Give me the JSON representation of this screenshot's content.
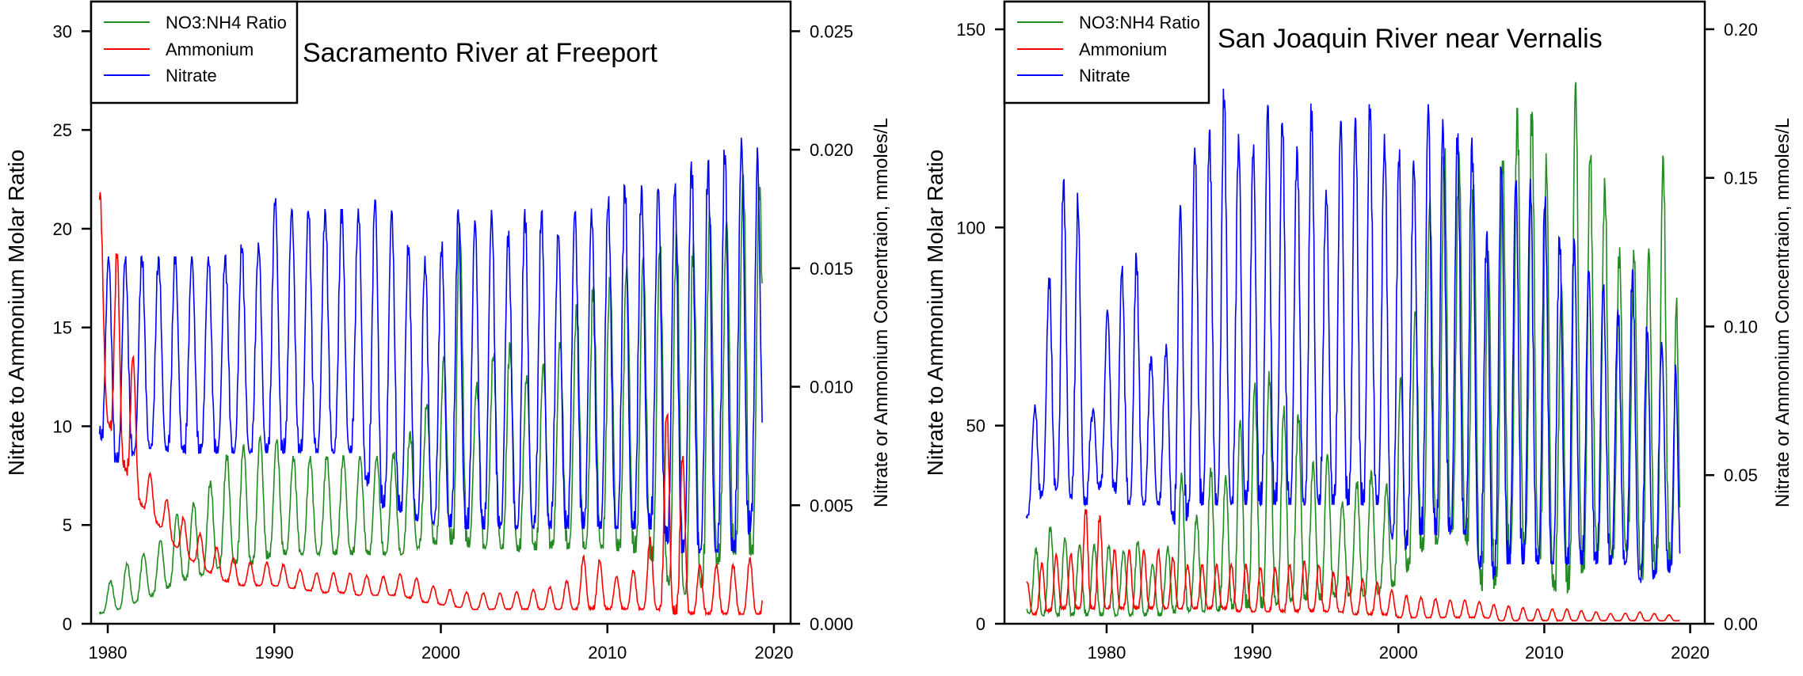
{
  "chart_data": [
    {
      "type": "line",
      "title": "Sacramento River at Freeport",
      "ylabel": "Nitrate to Ammonium Molar Ratio",
      "y2label": "Nitrate or Ammonium Concentraion, mmoles/L",
      "xlim": [
        1979,
        2021
      ],
      "ylim": [
        0,
        31.5
      ],
      "y2lim": [
        0,
        0.02625
      ],
      "xticks": [
        "1980",
        "1990",
        "2000",
        "2010",
        "2020"
      ],
      "yticks": [
        "0",
        "5",
        "10",
        "15",
        "20",
        "25",
        "30"
      ],
      "y2ticks": [
        "0.000",
        "0.005",
        "0.010",
        "0.015",
        "0.020",
        "0.025"
      ],
      "legend": [
        "NO3:NH4 Ratio",
        "Ammonium",
        "Nitrate"
      ],
      "legend_position": "top-left",
      "series": [
        {
          "name": "NO3:NH4 Ratio",
          "axis": "left",
          "color": "#228B22",
          "x": [
            1979.5,
            1980,
            1981,
            1982,
            1983,
            1984,
            1985,
            1986,
            1987,
            1988,
            1989,
            1990,
            1991,
            1992,
            1993,
            1994,
            1995,
            1996,
            1997,
            1998,
            1999,
            2000,
            2001,
            2002,
            2003,
            2004,
            2005,
            2006,
            2007,
            2008,
            2009,
            2010,
            2011,
            2012,
            2013,
            2014,
            2015,
            2016,
            2017,
            2018,
            2019,
            2019.3
          ],
          "low": [
            0.5,
            0.6,
            0.8,
            1.2,
            1.5,
            2,
            2.3,
            2.5,
            3,
            3,
            3,
            3.5,
            3.5,
            3.5,
            3.5,
            3.5,
            3.5,
            3.5,
            3.5,
            3.5,
            4,
            4,
            4,
            3.8,
            3.8,
            3.8,
            3.6,
            3.8,
            3.8,
            3.8,
            3.8,
            3.8,
            3.6,
            3.6,
            3,
            1.5,
            1.5,
            2,
            3.5,
            3.5,
            3.5,
            3.8
          ],
          "high": [
            1.5,
            2,
            3,
            3.5,
            4,
            5.5,
            6,
            7,
            8.5,
            9,
            9.5,
            9.5,
            8.5,
            8.5,
            8.5,
            8.5,
            8.5,
            8.5,
            8.5,
            9.5,
            11,
            12,
            21.5,
            12,
            13.5,
            14.5,
            12.5,
            13,
            14,
            16,
            17,
            17.5,
            18,
            18.5,
            19,
            20,
            19,
            21,
            20,
            22.5,
            23.5,
            21
          ]
        },
        {
          "name": "Ammonium",
          "axis": "right",
          "color": "#FF0000",
          "x": [
            1979.5,
            1980,
            1981,
            1982,
            1983,
            1984,
            1985,
            1986,
            1987,
            1988,
            1989,
            1990,
            1991,
            1992,
            1993,
            1994,
            1995,
            1996,
            1997,
            1998,
            1999,
            2000,
            2001,
            2002,
            2003,
            2004,
            2005,
            2006,
            2007,
            2008,
            2009,
            2010,
            2011,
            2012,
            2013,
            2014,
            2015,
            2016,
            2017,
            2018,
            2019,
            2019.3
          ],
          "low": [
            0.0125,
            0.0085,
            0.0065,
            0.005,
            0.0042,
            0.0033,
            0.0027,
            0.0022,
            0.0018,
            0.0016,
            0.0016,
            0.0016,
            0.0015,
            0.0014,
            0.0013,
            0.0013,
            0.0012,
            0.0012,
            0.0012,
            0.0011,
            0.0009,
            0.0008,
            0.0007,
            0.0006,
            0.0006,
            0.0006,
            0.0006,
            0.0006,
            0.0006,
            0.0006,
            0.0006,
            0.0006,
            0.0006,
            0.0006,
            0.0006,
            0.0004,
            0.0004,
            0.0004,
            0.0004,
            0.0004,
            0.0004,
            0.0004
          ],
          "high": [
            0.0185,
            0.015,
            0.0163,
            0.007,
            0.0058,
            0.0048,
            0.0042,
            0.0035,
            0.003,
            0.0026,
            0.0026,
            0.0026,
            0.0024,
            0.0022,
            0.0021,
            0.0022,
            0.0021,
            0.002,
            0.002,
            0.0022,
            0.0017,
            0.0015,
            0.0014,
            0.0013,
            0.0013,
            0.0013,
            0.0014,
            0.0015,
            0.0016,
            0.002,
            0.0035,
            0.002,
            0.002,
            0.0025,
            0.0045,
            0.0125,
            0.0025,
            0.0025,
            0.0025,
            0.0025,
            0.003,
            0.003
          ]
        },
        {
          "name": "Nitrate",
          "axis": "right",
          "color": "#0000FF",
          "x": [
            1979.5,
            1980,
            1981,
            1982,
            1983,
            1984,
            1985,
            1986,
            1987,
            1988,
            1989,
            1990,
            1991,
            1992,
            1993,
            1994,
            1995,
            1996,
            1997,
            1998,
            1999,
            2000,
            2001,
            2002,
            2003,
            2004,
            2005,
            2006,
            2007,
            2008,
            2009,
            2010,
            2011,
            2012,
            2013,
            2014,
            2015,
            2016,
            2017,
            2018,
            2019,
            2019.3
          ],
          "low": [
            0.008,
            0.0068,
            0.0068,
            0.0074,
            0.0074,
            0.0072,
            0.0072,
            0.0072,
            0.0072,
            0.0072,
            0.0072,
            0.0072,
            0.0072,
            0.0072,
            0.0072,
            0.0072,
            0.0072,
            0.0048,
            0.005,
            0.0045,
            0.0042,
            0.0042,
            0.004,
            0.004,
            0.004,
            0.004,
            0.004,
            0.004,
            0.004,
            0.004,
            0.004,
            0.004,
            0.004,
            0.004,
            0.004,
            0.003,
            0.003,
            0.003,
            0.003,
            0.003,
            0.0045,
            0.0065
          ],
          "high": [
            0.0155,
            0.0155,
            0.0155,
            0.0155,
            0.0155,
            0.0155,
            0.0155,
            0.0155,
            0.0155,
            0.016,
            0.016,
            0.018,
            0.0175,
            0.0175,
            0.0175,
            0.0175,
            0.0175,
            0.018,
            0.0175,
            0.016,
            0.0155,
            0.016,
            0.0175,
            0.017,
            0.0175,
            0.0165,
            0.0175,
            0.0175,
            0.0165,
            0.0175,
            0.0175,
            0.018,
            0.0185,
            0.0185,
            0.0185,
            0.0185,
            0.0195,
            0.0195,
            0.02,
            0.0205,
            0.0207,
            0.0125
          ]
        }
      ]
    },
    {
      "type": "line",
      "title": "San Joaquin River near Vernalis",
      "ylabel": "Nitrate to Ammonium Molar Ratio",
      "y2label": "Nitrate or Ammonium Concentraion, mmoles/L",
      "xlim": [
        1973,
        2021
      ],
      "ylim": [
        0,
        157
      ],
      "y2lim": [
        0,
        0.2093
      ],
      "xticks": [
        "1980",
        "1990",
        "2000",
        "2010",
        "2020"
      ],
      "yticks": [
        "0",
        "50",
        "100",
        "150"
      ],
      "y2ticks": [
        "0.00",
        "0.05",
        "0.10",
        "0.15",
        "0.20"
      ],
      "legend": [
        "NO3:NH4 Ratio",
        "Ammonium",
        "Nitrate"
      ],
      "legend_position": "top-left",
      "series": [
        {
          "name": "NO3:NH4 Ratio",
          "axis": "left",
          "color": "#228B22",
          "x": [
            1974.5,
            1975,
            1976,
            1977,
            1978,
            1979,
            1980,
            1981,
            1982,
            1983,
            1984,
            1985,
            1986,
            1987,
            1988,
            1989,
            1990,
            1991,
            1992,
            1993,
            1994,
            1995,
            1996,
            1997,
            1998,
            1999,
            2000,
            2001,
            2002,
            2003,
            2004,
            2005,
            2006,
            2007,
            2008,
            2009,
            2010,
            2011,
            2012,
            2013,
            2014,
            2015,
            2016,
            2017,
            2018,
            2019,
            2019.3
          ],
          "low": [
            3,
            2,
            2,
            2,
            2,
            2,
            2,
            2,
            2,
            2,
            2,
            3,
            3,
            3,
            3,
            4,
            4,
            4,
            5,
            6,
            6,
            6,
            7,
            7,
            7,
            8,
            10,
            15,
            20,
            20,
            25,
            18,
            5,
            12,
            20,
            20,
            15,
            5,
            10,
            15,
            20,
            15,
            20,
            8,
            15,
            15,
            20
          ],
          "high": [
            12,
            18,
            25,
            22,
            20,
            20,
            20,
            18,
            22,
            15,
            15,
            40,
            25,
            40,
            35,
            50,
            60,
            65,
            55,
            55,
            40,
            45,
            30,
            35,
            40,
            30,
            60,
            75,
            105,
            120,
            120,
            115,
            90,
            115,
            130,
            130,
            125,
            75,
            140,
            120,
            115,
            95,
            95,
            90,
            120,
            105,
            30
          ]
        },
        {
          "name": "Ammonium",
          "axis": "right",
          "color": "#FF0000",
          "x": [
            1974.5,
            1975,
            1976,
            1977,
            1978,
            1979,
            1980,
            1981,
            1982,
            1983,
            1984,
            1985,
            1986,
            1987,
            1988,
            1989,
            1990,
            1991,
            1992,
            1993,
            1994,
            1995,
            1996,
            1997,
            1998,
            1999,
            2000,
            2001,
            2002,
            2003,
            2004,
            2005,
            2006,
            2007,
            2008,
            2009,
            2010,
            2011,
            2012,
            2013,
            2014,
            2015,
            2016,
            2017,
            2018,
            2019,
            2019.3
          ],
          "low": [
            0.004,
            0.003,
            0.004,
            0.005,
            0.005,
            0.005,
            0.005,
            0.005,
            0.005,
            0.005,
            0.005,
            0.005,
            0.005,
            0.005,
            0.005,
            0.004,
            0.004,
            0.004,
            0.004,
            0.004,
            0.004,
            0.004,
            0.004,
            0.003,
            0.003,
            0.003,
            0.002,
            0.002,
            0.002,
            0.002,
            0.002,
            0.002,
            0.002,
            0.001,
            0.001,
            0.001,
            0.001,
            0.001,
            0.001,
            0.001,
            0.001,
            0.001,
            0.001,
            0.001,
            0.001,
            0.001,
            0.001
          ],
          "high": [
            0.014,
            0.015,
            0.025,
            0.022,
            0.025,
            0.05,
            0.025,
            0.025,
            0.025,
            0.025,
            0.025,
            0.02,
            0.02,
            0.02,
            0.02,
            0.02,
            0.02,
            0.018,
            0.02,
            0.02,
            0.022,
            0.018,
            0.017,
            0.015,
            0.015,
            0.013,
            0.01,
            0.009,
            0.009,
            0.008,
            0.008,
            0.008,
            0.007,
            0.006,
            0.006,
            0.005,
            0.005,
            0.005,
            0.005,
            0.004,
            0.004,
            0.003,
            0.004,
            0.004,
            0.003,
            0.003,
            0.002
          ]
        },
        {
          "name": "Nitrate",
          "axis": "right",
          "color": "#0000FF",
          "x": [
            1974.5,
            1975,
            1976,
            1977,
            1978,
            1979,
            1980,
            1981,
            1982,
            1983,
            1984,
            1985,
            1986,
            1987,
            1988,
            1989,
            1990,
            1991,
            1992,
            1993,
            1994,
            1995,
            1996,
            1997,
            1998,
            1999,
            2000,
            2001,
            2002,
            2003,
            2004,
            2005,
            2006,
            2007,
            2008,
            2009,
            2010,
            2011,
            2012,
            2013,
            2014,
            2015,
            2016,
            2017,
            2018,
            2019,
            2019.3
          ],
          "low": [
            0.035,
            0.04,
            0.045,
            0.045,
            0.04,
            0.04,
            0.05,
            0.04,
            0.04,
            0.04,
            0.04,
            0.03,
            0.04,
            0.04,
            0.04,
            0.04,
            0.04,
            0.04,
            0.04,
            0.04,
            0.04,
            0.04,
            0.04,
            0.04,
            0.04,
            0.04,
            0.02,
            0.03,
            0.03,
            0.03,
            0.03,
            0.03,
            0.01,
            0.02,
            0.02,
            0.02,
            0.02,
            0.02,
            0.02,
            0.02,
            0.02,
            0.02,
            0.02,
            0.01,
            0.02,
            0.015,
            0.015
          ],
          "high": [
            0.06,
            0.07,
            0.115,
            0.15,
            0.145,
            0.07,
            0.105,
            0.12,
            0.125,
            0.09,
            0.09,
            0.14,
            0.16,
            0.165,
            0.18,
            0.165,
            0.16,
            0.175,
            0.17,
            0.16,
            0.175,
            0.145,
            0.17,
            0.17,
            0.175,
            0.165,
            0.16,
            0.155,
            0.175,
            0.17,
            0.165,
            0.165,
            0.13,
            0.155,
            0.15,
            0.15,
            0.145,
            0.13,
            0.13,
            0.12,
            0.115,
            0.105,
            0.12,
            0.1,
            0.095,
            0.09,
            0.04
          ]
        }
      ]
    }
  ]
}
